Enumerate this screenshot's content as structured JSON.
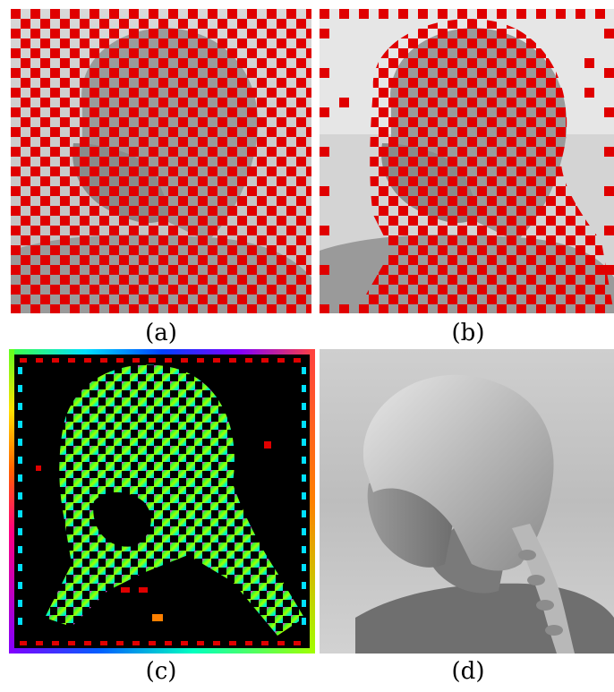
{
  "figure": {
    "panels": [
      {
        "id": "a",
        "label": "(a)",
        "description_icon": "portrait-with-dense-red-checker-mask"
      },
      {
        "id": "b",
        "label": "(b)",
        "description_icon": "portrait-with-sparse-red-mask"
      },
      {
        "id": "c",
        "label": "(c)",
        "description_icon": "color-coded-mask-on-black"
      },
      {
        "id": "d",
        "label": "(d)",
        "description_icon": "grayscale-portrait"
      }
    ],
    "colors": {
      "mask_red": "#e00000",
      "panel_c_background": "#000000",
      "sky_light": "#d8d8d8",
      "sky_dark": "#b8b8b8"
    }
  }
}
